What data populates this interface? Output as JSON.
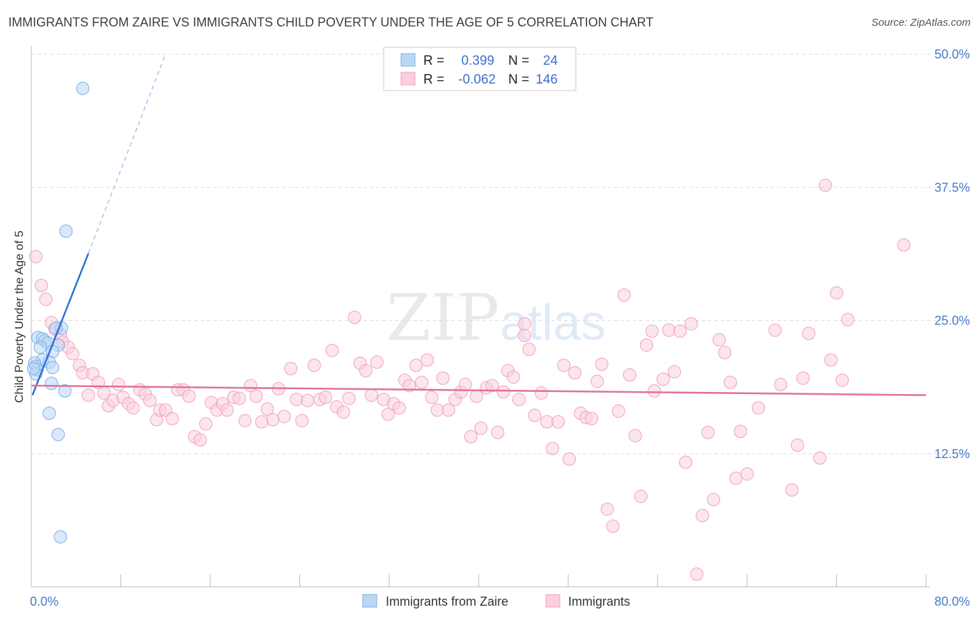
{
  "header": {
    "title": "IMMIGRANTS FROM ZAIRE VS IMMIGRANTS CHILD POVERTY UNDER THE AGE OF 5 CORRELATION CHART",
    "source": "Source: ZipAtlas.com"
  },
  "watermark": {
    "zip": "ZIP",
    "atlas": "atlas"
  },
  "chart_data": {
    "type": "scatter",
    "title": "IMMIGRANTS FROM ZAIRE VS IMMIGRANTS CHILD POVERTY UNDER THE AGE OF 5 CORRELATION CHART",
    "xlabel": "",
    "ylabel": "Child Poverty Under the Age of 5",
    "xlim": [
      0,
      80
    ],
    "ylim": [
      0,
      50
    ],
    "x_tick_labels": [
      "0.0%",
      "80.0%"
    ],
    "y_ticks": [
      12.5,
      25.0,
      37.5,
      50.0
    ],
    "y_tick_labels": [
      "12.5%",
      "25.0%",
      "37.5%",
      "50.0%"
    ],
    "legend": {
      "r_label": "R =",
      "n_label": "N =",
      "entries": [
        {
          "name": "Immigrants from Zaire",
          "r": "0.399",
          "n": "24",
          "color": "#7aaee8"
        },
        {
          "name": "Immigrants",
          "r": "-0.062",
          "n": "146",
          "color": "#f0a0bc"
        }
      ]
    },
    "series": [
      {
        "name": "Immigrants from Zaire",
        "color": "#7aaee8",
        "trend": {
          "x0": 0.1,
          "y0": 18.0,
          "x1": 5.1,
          "y1": 31.3,
          "dash_x1": 12.0,
          "dash_y1": 50.0,
          "color": "#2f6fd6"
        },
        "points": [
          [
            4.6,
            46.8
          ],
          [
            3.1,
            33.4
          ],
          [
            2.7,
            24.3
          ],
          [
            2.2,
            24.3
          ],
          [
            0.6,
            23.4
          ],
          [
            1.0,
            23.3
          ],
          [
            1.2,
            23.1
          ],
          [
            1.5,
            22.9
          ],
          [
            0.8,
            22.5
          ],
          [
            2.4,
            22.7
          ],
          [
            1.9,
            22.1
          ],
          [
            1.0,
            21.3
          ],
          [
            1.6,
            21.1
          ],
          [
            0.3,
            21.0
          ],
          [
            0.4,
            20.7
          ],
          [
            0.5,
            20.4
          ],
          [
            1.9,
            20.6
          ],
          [
            0.4,
            20.0
          ],
          [
            1.8,
            19.1
          ],
          [
            3.0,
            18.4
          ],
          [
            1.6,
            16.3
          ],
          [
            2.4,
            14.3
          ],
          [
            2.6,
            4.7
          ],
          [
            0.2,
            20.5
          ]
        ]
      },
      {
        "name": "Immigrants",
        "color": "#f0a0bc",
        "trend": {
          "x0": 0.0,
          "y0": 18.9,
          "x1": 80.0,
          "y1": 18.0,
          "color": "#e0709a"
        },
        "points": [
          [
            0.4,
            31.0
          ],
          [
            0.9,
            28.3
          ],
          [
            1.3,
            27.0
          ],
          [
            1.8,
            24.8
          ],
          [
            2.1,
            24.2
          ],
          [
            2.6,
            23.7
          ],
          [
            2.8,
            23.0
          ],
          [
            3.3,
            22.5
          ],
          [
            3.7,
            21.9
          ],
          [
            4.3,
            20.8
          ],
          [
            4.6,
            20.1
          ],
          [
            5.1,
            18.0
          ],
          [
            5.5,
            20.0
          ],
          [
            6.0,
            19.2
          ],
          [
            6.5,
            18.2
          ],
          [
            6.9,
            17.0
          ],
          [
            7.3,
            17.5
          ],
          [
            7.8,
            19.0
          ],
          [
            8.2,
            17.8
          ],
          [
            8.7,
            17.2
          ],
          [
            9.1,
            16.8
          ],
          [
            9.7,
            18.5
          ],
          [
            10.2,
            18.1
          ],
          [
            10.6,
            17.5
          ],
          [
            11.2,
            15.7
          ],
          [
            11.5,
            16.6
          ],
          [
            12.0,
            16.6
          ],
          [
            12.6,
            15.8
          ],
          [
            13.1,
            18.5
          ],
          [
            13.6,
            18.5
          ],
          [
            14.1,
            17.9
          ],
          [
            14.6,
            14.1
          ],
          [
            15.1,
            13.8
          ],
          [
            15.6,
            15.3
          ],
          [
            16.1,
            17.3
          ],
          [
            16.6,
            16.6
          ],
          [
            17.1,
            17.2
          ],
          [
            17.5,
            16.6
          ],
          [
            18.1,
            17.8
          ],
          [
            18.6,
            17.7
          ],
          [
            19.1,
            15.6
          ],
          [
            19.6,
            18.9
          ],
          [
            20.1,
            17.9
          ],
          [
            20.6,
            15.5
          ],
          [
            21.1,
            16.7
          ],
          [
            21.6,
            15.7
          ],
          [
            22.1,
            18.6
          ],
          [
            22.6,
            16.0
          ],
          [
            23.2,
            20.5
          ],
          [
            23.7,
            17.6
          ],
          [
            24.2,
            15.6
          ],
          [
            24.7,
            17.5
          ],
          [
            25.3,
            20.8
          ],
          [
            25.8,
            17.6
          ],
          [
            26.3,
            17.8
          ],
          [
            26.9,
            22.2
          ],
          [
            27.3,
            16.9
          ],
          [
            27.9,
            16.4
          ],
          [
            28.4,
            17.7
          ],
          [
            28.9,
            25.3
          ],
          [
            29.4,
            21.0
          ],
          [
            29.9,
            20.3
          ],
          [
            30.4,
            18.0
          ],
          [
            30.9,
            21.1
          ],
          [
            31.5,
            17.6
          ],
          [
            31.9,
            16.2
          ],
          [
            32.4,
            17.2
          ],
          [
            32.9,
            16.8
          ],
          [
            33.4,
            19.4
          ],
          [
            33.8,
            18.9
          ],
          [
            34.4,
            20.8
          ],
          [
            34.9,
            19.2
          ],
          [
            35.4,
            21.3
          ],
          [
            35.8,
            17.8
          ],
          [
            36.3,
            16.6
          ],
          [
            36.8,
            19.6
          ],
          [
            37.3,
            16.6
          ],
          [
            37.9,
            17.6
          ],
          [
            38.4,
            18.3
          ],
          [
            38.8,
            19.0
          ],
          [
            39.3,
            14.1
          ],
          [
            39.8,
            17.9
          ],
          [
            40.2,
            14.9
          ],
          [
            40.7,
            18.7
          ],
          [
            41.2,
            18.9
          ],
          [
            41.7,
            14.5
          ],
          [
            42.2,
            18.3
          ],
          [
            42.6,
            20.3
          ],
          [
            43.1,
            19.7
          ],
          [
            43.6,
            17.6
          ],
          [
            44.1,
            23.6
          ],
          [
            44.5,
            22.3
          ],
          [
            44.1,
            24.7
          ],
          [
            45.0,
            16.1
          ],
          [
            45.6,
            18.2
          ],
          [
            46.1,
            15.5
          ],
          [
            46.6,
            13.0
          ],
          [
            47.1,
            15.5
          ],
          [
            47.6,
            20.8
          ],
          [
            48.1,
            12.0
          ],
          [
            48.6,
            20.1
          ],
          [
            49.1,
            16.3
          ],
          [
            49.6,
            15.9
          ],
          [
            50.1,
            15.8
          ],
          [
            50.6,
            19.3
          ],
          [
            51.0,
            20.9
          ],
          [
            51.5,
            7.3
          ],
          [
            52.0,
            5.7
          ],
          [
            52.5,
            16.5
          ],
          [
            53.0,
            27.4
          ],
          [
            53.5,
            19.9
          ],
          [
            54.0,
            14.2
          ],
          [
            54.5,
            8.5
          ],
          [
            55.0,
            22.7
          ],
          [
            55.5,
            24.0
          ],
          [
            55.7,
            18.4
          ],
          [
            56.5,
            19.5
          ],
          [
            57.0,
            24.1
          ],
          [
            57.5,
            20.2
          ],
          [
            58.0,
            24.0
          ],
          [
            58.5,
            11.7
          ],
          [
            59.0,
            24.7
          ],
          [
            59.5,
            1.2
          ],
          [
            60.0,
            6.7
          ],
          [
            60.5,
            14.5
          ],
          [
            61.0,
            8.2
          ],
          [
            61.5,
            23.2
          ],
          [
            62.0,
            22.0
          ],
          [
            62.5,
            19.2
          ],
          [
            63.0,
            10.2
          ],
          [
            63.4,
            14.6
          ],
          [
            64.0,
            10.6
          ],
          [
            65.0,
            16.8
          ],
          [
            66.5,
            24.1
          ],
          [
            67.0,
            19.0
          ],
          [
            68.0,
            9.1
          ],
          [
            68.5,
            13.3
          ],
          [
            69.0,
            19.6
          ],
          [
            69.5,
            23.8
          ],
          [
            70.5,
            12.1
          ],
          [
            71.0,
            37.7
          ],
          [
            71.5,
            21.3
          ],
          [
            72.0,
            27.6
          ],
          [
            72.5,
            19.4
          ],
          [
            73.0,
            25.1
          ],
          [
            78.0,
            32.1
          ]
        ]
      }
    ]
  }
}
